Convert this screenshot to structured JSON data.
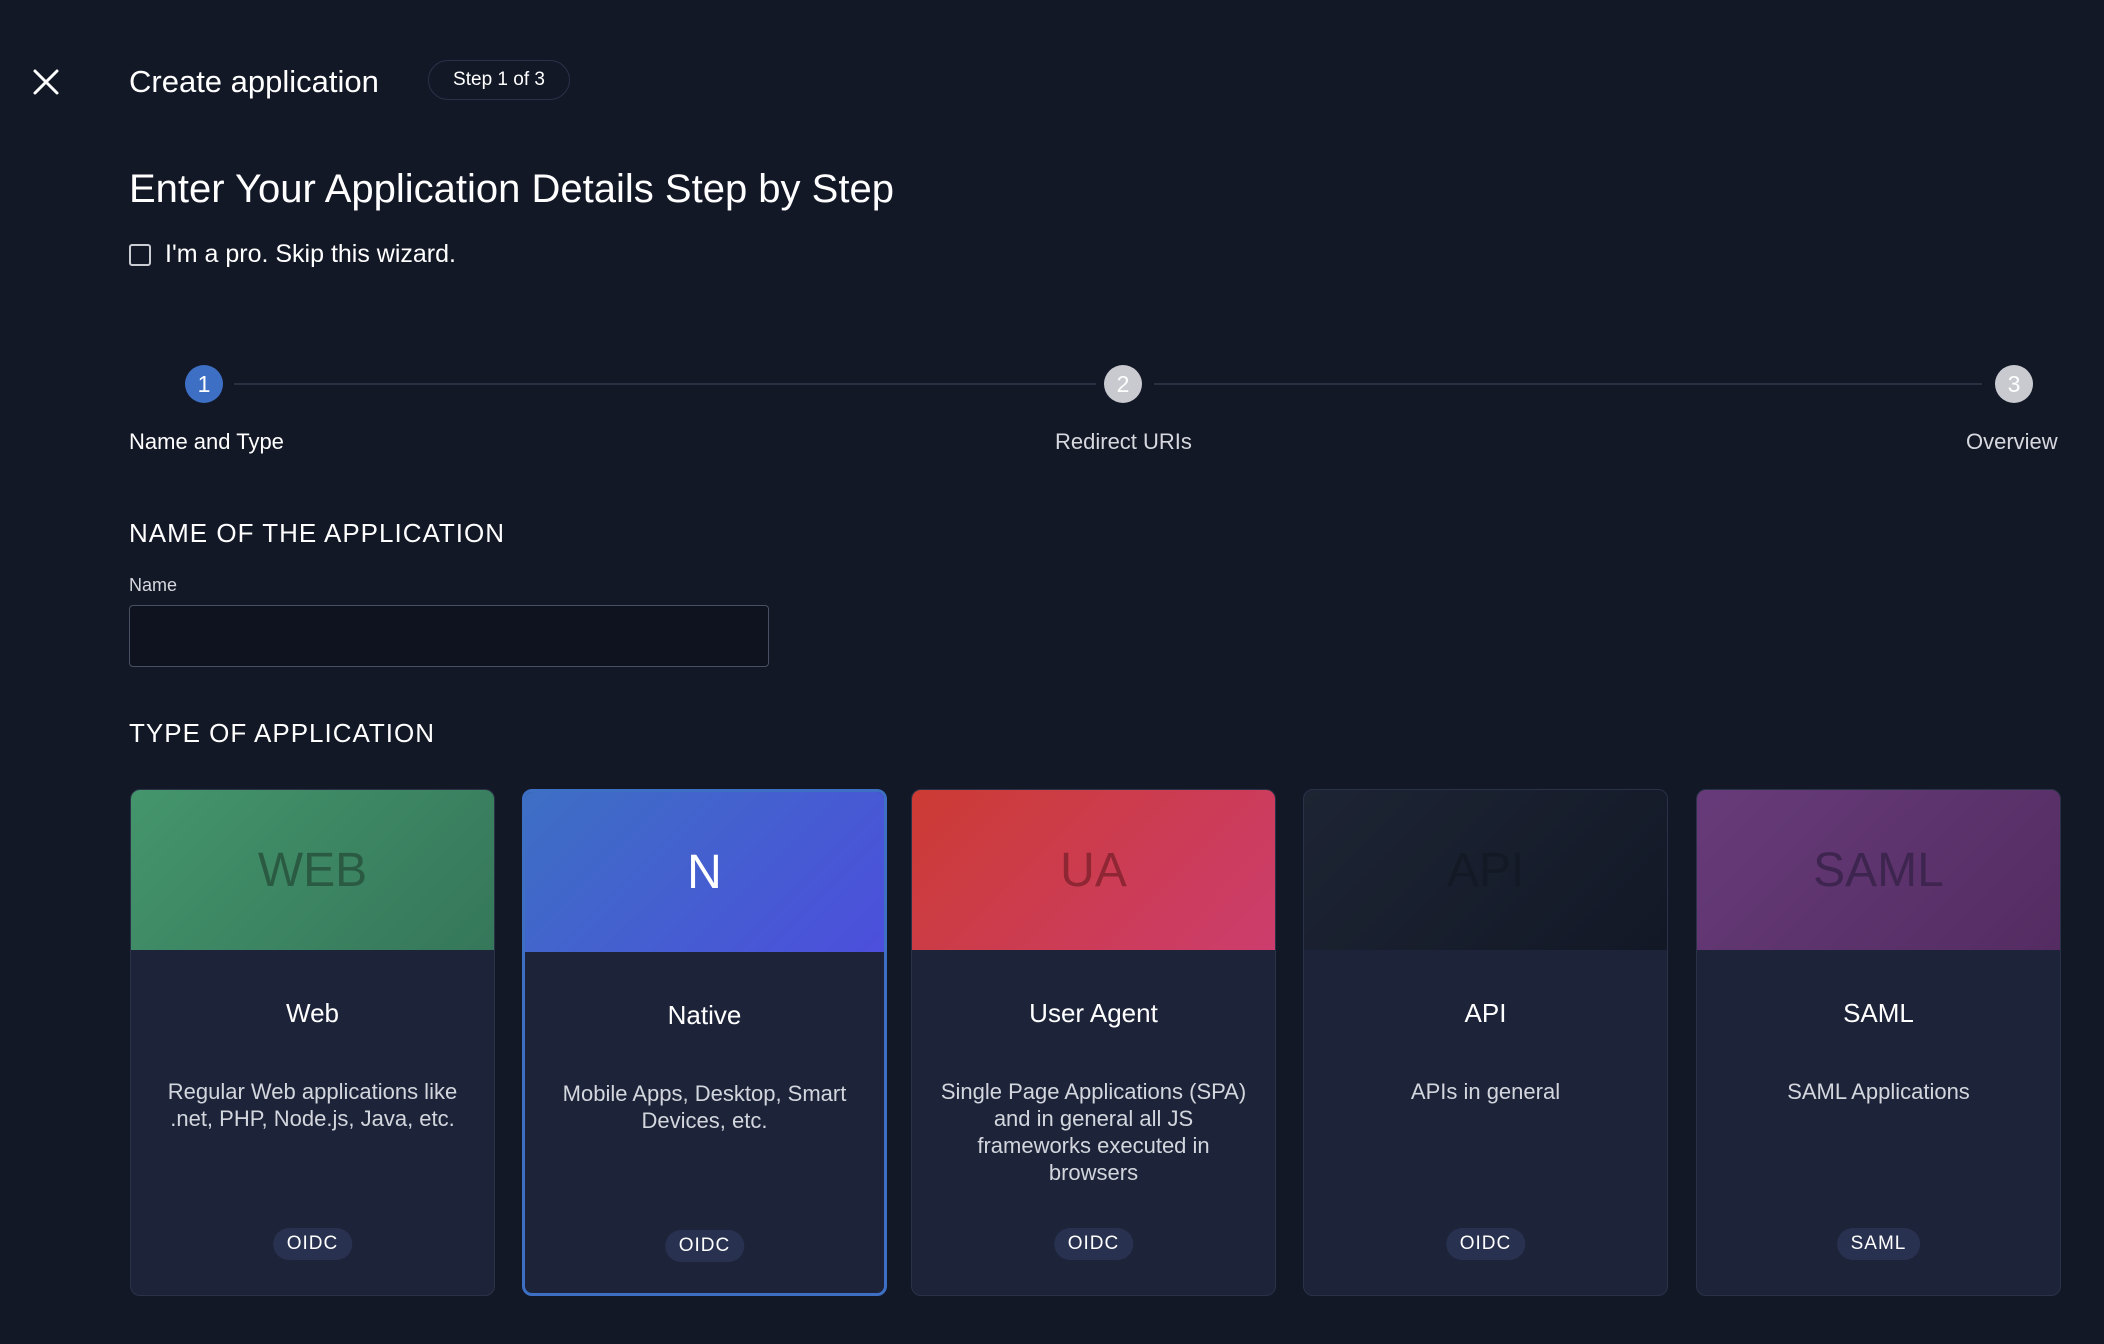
{
  "header": {
    "title": "Create application",
    "step_badge": "Step 1 of 3",
    "close_icon": "close-icon"
  },
  "heading": "Enter Your Application Details Step by Step",
  "skip_checkbox": {
    "label": "I'm a pro. Skip this wizard.",
    "checked": false
  },
  "stepper": {
    "current": 1,
    "steps": [
      {
        "number": "1",
        "label": "Name and Type"
      },
      {
        "number": "2",
        "label": "Redirect URIs"
      },
      {
        "number": "3",
        "label": "Overview"
      }
    ]
  },
  "name_section": {
    "title": "NAME OF THE APPLICATION",
    "field_label": "Name",
    "value": "",
    "placeholder": ""
  },
  "type_section": {
    "title": "TYPE OF APPLICATION",
    "cards": [
      {
        "code": "WEB",
        "title": "Web",
        "description": "Regular Web applications like .net, PHP, Node.js, Java, etc.",
        "badge": "OIDC",
        "colors": [
          "#44956c",
          "#35775a"
        ],
        "selected": false
      },
      {
        "code": "N",
        "title": "Native",
        "description": "Mobile Apps, Desktop, Smart Devices, etc.",
        "badge": "OIDC",
        "colors": [
          "#3d6fc4",
          "#4c4fdc"
        ],
        "selected": true
      },
      {
        "code": "UA",
        "title": "User Agent",
        "description": "Single Page Applications (SPA) and in general all JS frameworks executed in browsers",
        "badge": "OIDC",
        "colors": [
          "#cc3b33",
          "#cc3d6e"
        ],
        "selected": false
      },
      {
        "code": "API",
        "title": "API",
        "description": "APIs in general",
        "badge": "OIDC",
        "colors": [
          "#1d2433",
          "#121826"
        ],
        "selected": false
      },
      {
        "code": "SAML",
        "title": "SAML",
        "description": "SAML Applications",
        "badge": "SAML",
        "colors": [
          "#673b79",
          "#542c62"
        ],
        "selected": false
      }
    ]
  }
}
